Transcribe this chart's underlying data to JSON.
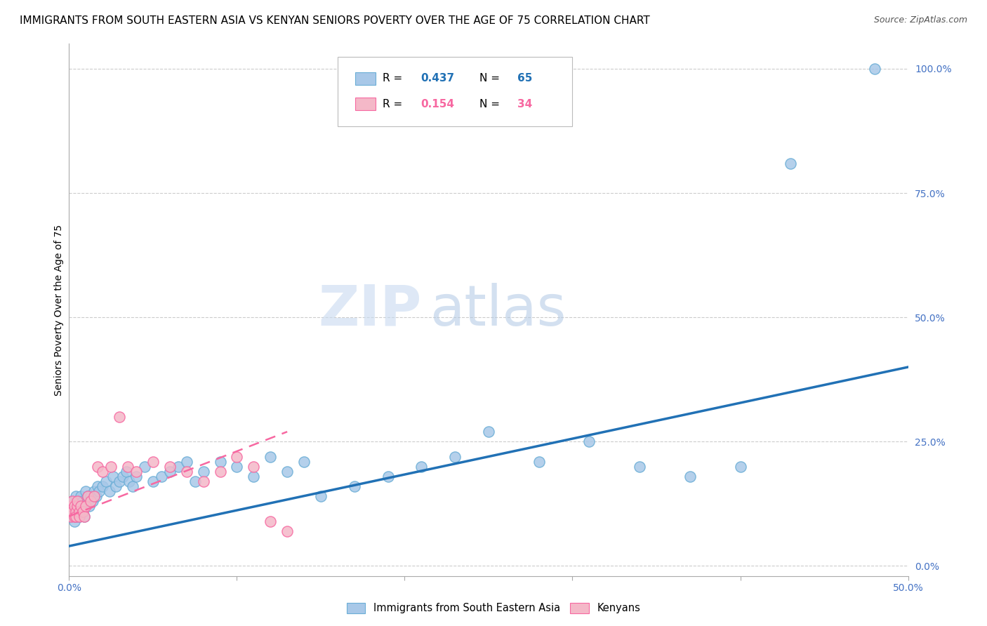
{
  "title": "IMMIGRANTS FROM SOUTH EASTERN ASIA VS KENYAN SENIORS POVERTY OVER THE AGE OF 75 CORRELATION CHART",
  "source": "Source: ZipAtlas.com",
  "ylabel": "Seniors Poverty Over the Age of 75",
  "blue_color": "#a8c8e8",
  "blue_edge_color": "#6baed6",
  "pink_color": "#f4b8c8",
  "pink_edge_color": "#f768a1",
  "blue_line_color": "#2171b5",
  "pink_line_color": "#f768a1",
  "watermark_zip_color": "#c8d8ec",
  "watermark_atlas_color": "#b8cce0",
  "grid_color": "#cccccc",
  "background_color": "#ffffff",
  "title_fontsize": 11,
  "source_fontsize": 9,
  "axis_label_fontsize": 10,
  "tick_fontsize": 10,
  "xlim": [
    0.0,
    0.5
  ],
  "ylim": [
    -0.02,
    1.05
  ],
  "blue_scatter_x": [
    0.001,
    0.002,
    0.002,
    0.003,
    0.003,
    0.004,
    0.004,
    0.005,
    0.005,
    0.006,
    0.006,
    0.007,
    0.007,
    0.008,
    0.008,
    0.009,
    0.009,
    0.01,
    0.01,
    0.011,
    0.012,
    0.013,
    0.014,
    0.015,
    0.016,
    0.017,
    0.018,
    0.02,
    0.022,
    0.024,
    0.026,
    0.028,
    0.03,
    0.032,
    0.034,
    0.036,
    0.038,
    0.04,
    0.045,
    0.05,
    0.055,
    0.06,
    0.065,
    0.07,
    0.075,
    0.08,
    0.09,
    0.1,
    0.11,
    0.12,
    0.13,
    0.14,
    0.15,
    0.17,
    0.19,
    0.21,
    0.23,
    0.25,
    0.28,
    0.31,
    0.34,
    0.37,
    0.4,
    0.43,
    0.48
  ],
  "blue_scatter_y": [
    0.1,
    0.11,
    0.13,
    0.09,
    0.12,
    0.1,
    0.14,
    0.11,
    0.12,
    0.1,
    0.13,
    0.12,
    0.14,
    0.11,
    0.13,
    0.12,
    0.1,
    0.13,
    0.15,
    0.14,
    0.12,
    0.14,
    0.13,
    0.15,
    0.14,
    0.16,
    0.15,
    0.16,
    0.17,
    0.15,
    0.18,
    0.16,
    0.17,
    0.18,
    0.19,
    0.17,
    0.16,
    0.18,
    0.2,
    0.17,
    0.18,
    0.19,
    0.2,
    0.21,
    0.17,
    0.19,
    0.21,
    0.2,
    0.18,
    0.22,
    0.19,
    0.21,
    0.14,
    0.16,
    0.18,
    0.2,
    0.22,
    0.27,
    0.21,
    0.25,
    0.2,
    0.18,
    0.2,
    0.81,
    1.0
  ],
  "pink_scatter_x": [
    0.001,
    0.001,
    0.002,
    0.002,
    0.003,
    0.003,
    0.004,
    0.004,
    0.005,
    0.005,
    0.006,
    0.006,
    0.007,
    0.008,
    0.009,
    0.01,
    0.011,
    0.013,
    0.015,
    0.017,
    0.02,
    0.025,
    0.03,
    0.035,
    0.04,
    0.05,
    0.06,
    0.07,
    0.08,
    0.09,
    0.1,
    0.11,
    0.12,
    0.13
  ],
  "pink_scatter_y": [
    0.1,
    0.12,
    0.11,
    0.13,
    0.1,
    0.12,
    0.11,
    0.1,
    0.12,
    0.13,
    0.11,
    0.1,
    0.12,
    0.11,
    0.1,
    0.12,
    0.14,
    0.13,
    0.14,
    0.2,
    0.19,
    0.2,
    0.3,
    0.2,
    0.19,
    0.21,
    0.2,
    0.19,
    0.17,
    0.19,
    0.22,
    0.2,
    0.09,
    0.07
  ],
  "right_yticks": [
    0.0,
    0.25,
    0.5,
    0.75,
    1.0
  ],
  "right_yticklabels": [
    "0.0%",
    "25.0%",
    "50.0%",
    "75.0%",
    "100.0%"
  ],
  "xticks": [
    0.0,
    0.1,
    0.2,
    0.3,
    0.4,
    0.5
  ],
  "blue_R": 0.437,
  "blue_N": 65,
  "pink_R": 0.154,
  "pink_N": 34
}
